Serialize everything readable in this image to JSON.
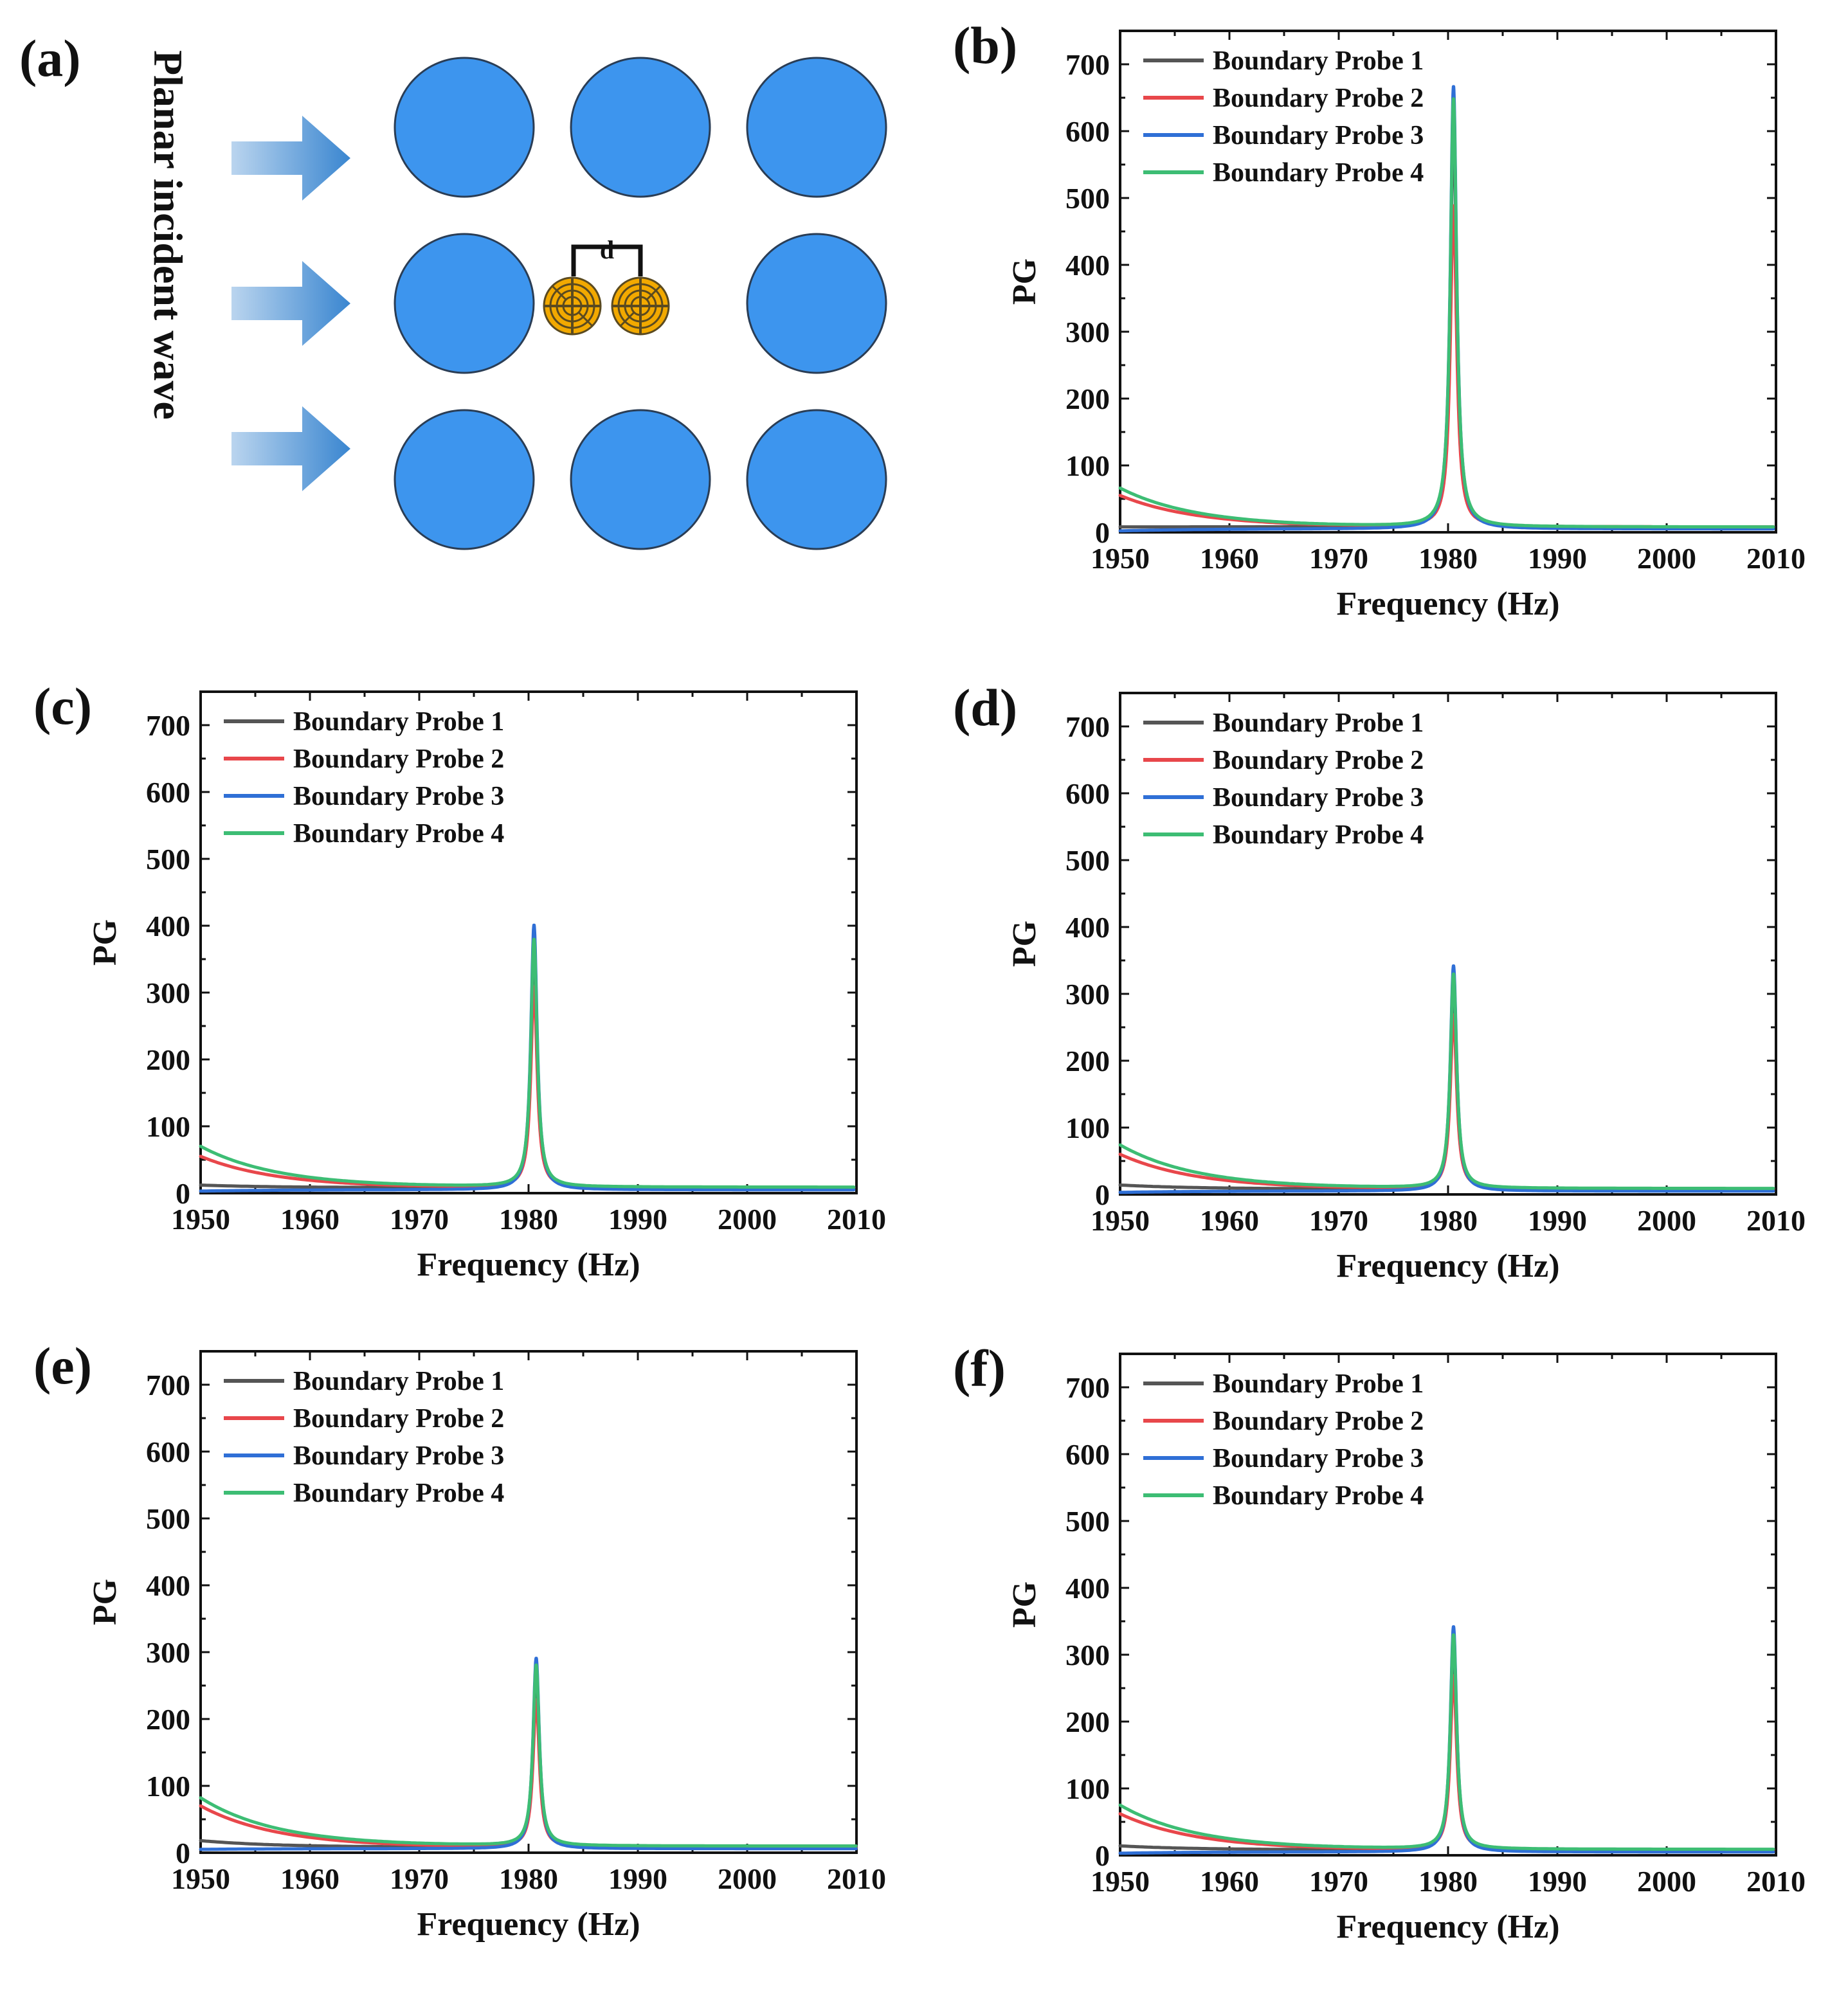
{
  "figure": {
    "panel_a": {
      "label": "(a)",
      "title": "Planar incident wave",
      "spacing_label": "d",
      "colors": {
        "cylinder": "#3d95ee",
        "arrow": "#3a86d0",
        "resonator": "#f2a900"
      }
    }
  },
  "chart_data": [
    {
      "label": "(b)",
      "type": "line",
      "xlabel": "Frequency (Hz)",
      "ylabel": "PG",
      "xlim": [
        1950,
        2010
      ],
      "ylim": [
        0,
        750
      ],
      "xticks": [
        "1950",
        "1960",
        "1970",
        "1980",
        "1990",
        "2000",
        "2010"
      ],
      "yticks": [
        "0",
        "100",
        "200",
        "300",
        "400",
        "500",
        "600",
        "700"
      ],
      "legend_position": "top-left",
      "series": [
        {
          "name": "Boundary Probe 1",
          "color": "#555555",
          "base": 8,
          "end": 8,
          "peak": 600
        },
        {
          "name": "Boundary Probe 2",
          "color": "#e8474b",
          "base": 55,
          "end": 8,
          "peak": 480
        },
        {
          "name": "Boundary Probe 3",
          "color": "#2f6fd6",
          "base": 2,
          "end": 5,
          "peak": 662
        },
        {
          "name": "Boundary Probe 4",
          "color": "#3dbd74",
          "base": 66,
          "end": 8,
          "peak": 640
        }
      ],
      "peak_x": 1980.5
    },
    {
      "label": "(c)",
      "type": "line",
      "xlabel": "Frequency (Hz)",
      "ylabel": "PG",
      "xlim": [
        1950,
        2010
      ],
      "ylim": [
        0,
        750
      ],
      "xticks": [
        "1950",
        "1960",
        "1970",
        "1980",
        "1990",
        "2000",
        "2010"
      ],
      "yticks": [
        "0",
        "100",
        "200",
        "300",
        "400",
        "500",
        "600",
        "700"
      ],
      "legend_position": "top-left",
      "series": [
        {
          "name": "Boundary Probe 1",
          "color": "#555555",
          "base": 12,
          "end": 8,
          "peak": 360
        },
        {
          "name": "Boundary Probe 2",
          "color": "#e8474b",
          "base": 55,
          "end": 8,
          "peak": 300
        },
        {
          "name": "Boundary Probe 3",
          "color": "#2f6fd6",
          "base": 3,
          "end": 5,
          "peak": 396
        },
        {
          "name": "Boundary Probe 4",
          "color": "#3dbd74",
          "base": 70,
          "end": 9,
          "peak": 370
        }
      ],
      "peak_x": 1980.5
    },
    {
      "label": "(d)",
      "type": "line",
      "xlabel": "Frequency (Hz)",
      "ylabel": "PG",
      "xlim": [
        1950,
        2010
      ],
      "ylim": [
        0,
        750
      ],
      "xticks": [
        "1950",
        "1960",
        "1970",
        "1980",
        "1990",
        "2000",
        "2010"
      ],
      "yticks": [
        "0",
        "100",
        "200",
        "300",
        "400",
        "500",
        "600",
        "700"
      ],
      "legend_position": "top-left",
      "series": [
        {
          "name": "Boundary Probe 1",
          "color": "#555555",
          "base": 14,
          "end": 8,
          "peak": 300
        },
        {
          "name": "Boundary Probe 2",
          "color": "#e8474b",
          "base": 60,
          "end": 8,
          "peak": 260
        },
        {
          "name": "Boundary Probe 3",
          "color": "#2f6fd6",
          "base": 3,
          "end": 5,
          "peak": 337
        },
        {
          "name": "Boundary Probe 4",
          "color": "#3dbd74",
          "base": 74,
          "end": 9,
          "peak": 320
        }
      ],
      "peak_x": 1980.5
    },
    {
      "label": "(e)",
      "type": "line",
      "xlabel": "Frequency (Hz)",
      "ylabel": "PG",
      "xlim": [
        1950,
        2010
      ],
      "ylim": [
        0,
        750
      ],
      "xticks": [
        "1950",
        "1960",
        "1970",
        "1980",
        "1990",
        "2000",
        "2010"
      ],
      "yticks": [
        "0",
        "100",
        "200",
        "300",
        "400",
        "500",
        "600",
        "700"
      ],
      "legend_position": "top-left",
      "series": [
        {
          "name": "Boundary Probe 1",
          "color": "#555555",
          "base": 18,
          "end": 8,
          "peak": 250
        },
        {
          "name": "Boundary Probe 2",
          "color": "#e8474b",
          "base": 70,
          "end": 8,
          "peak": 220
        },
        {
          "name": "Boundary Probe 3",
          "color": "#2f6fd6",
          "base": 5,
          "end": 6,
          "peak": 285
        },
        {
          "name": "Boundary Probe 4",
          "color": "#3dbd74",
          "base": 82,
          "end": 10,
          "peak": 270
        }
      ],
      "peak_x": 1980.7
    },
    {
      "label": "(f)",
      "type": "line",
      "xlabel": "Frequency (Hz)",
      "ylabel": "PG",
      "xlim": [
        1950,
        2010
      ],
      "ylim": [
        0,
        750
      ],
      "xticks": [
        "1950",
        "1960",
        "1970",
        "1980",
        "1990",
        "2000",
        "2010"
      ],
      "yticks": [
        "0",
        "100",
        "200",
        "300",
        "400",
        "500",
        "600",
        "700"
      ],
      "legend_position": "top-left",
      "series": [
        {
          "name": "Boundary Probe 1",
          "color": "#555555",
          "base": 14,
          "end": 8,
          "peak": 300
        },
        {
          "name": "Boundary Probe 2",
          "color": "#e8474b",
          "base": 62,
          "end": 8,
          "peak": 260
        },
        {
          "name": "Boundary Probe 3",
          "color": "#2f6fd6",
          "base": 3,
          "end": 5,
          "peak": 337
        },
        {
          "name": "Boundary Probe 4",
          "color": "#3dbd74",
          "base": 75,
          "end": 9,
          "peak": 320
        }
      ],
      "peak_x": 1980.5
    }
  ]
}
